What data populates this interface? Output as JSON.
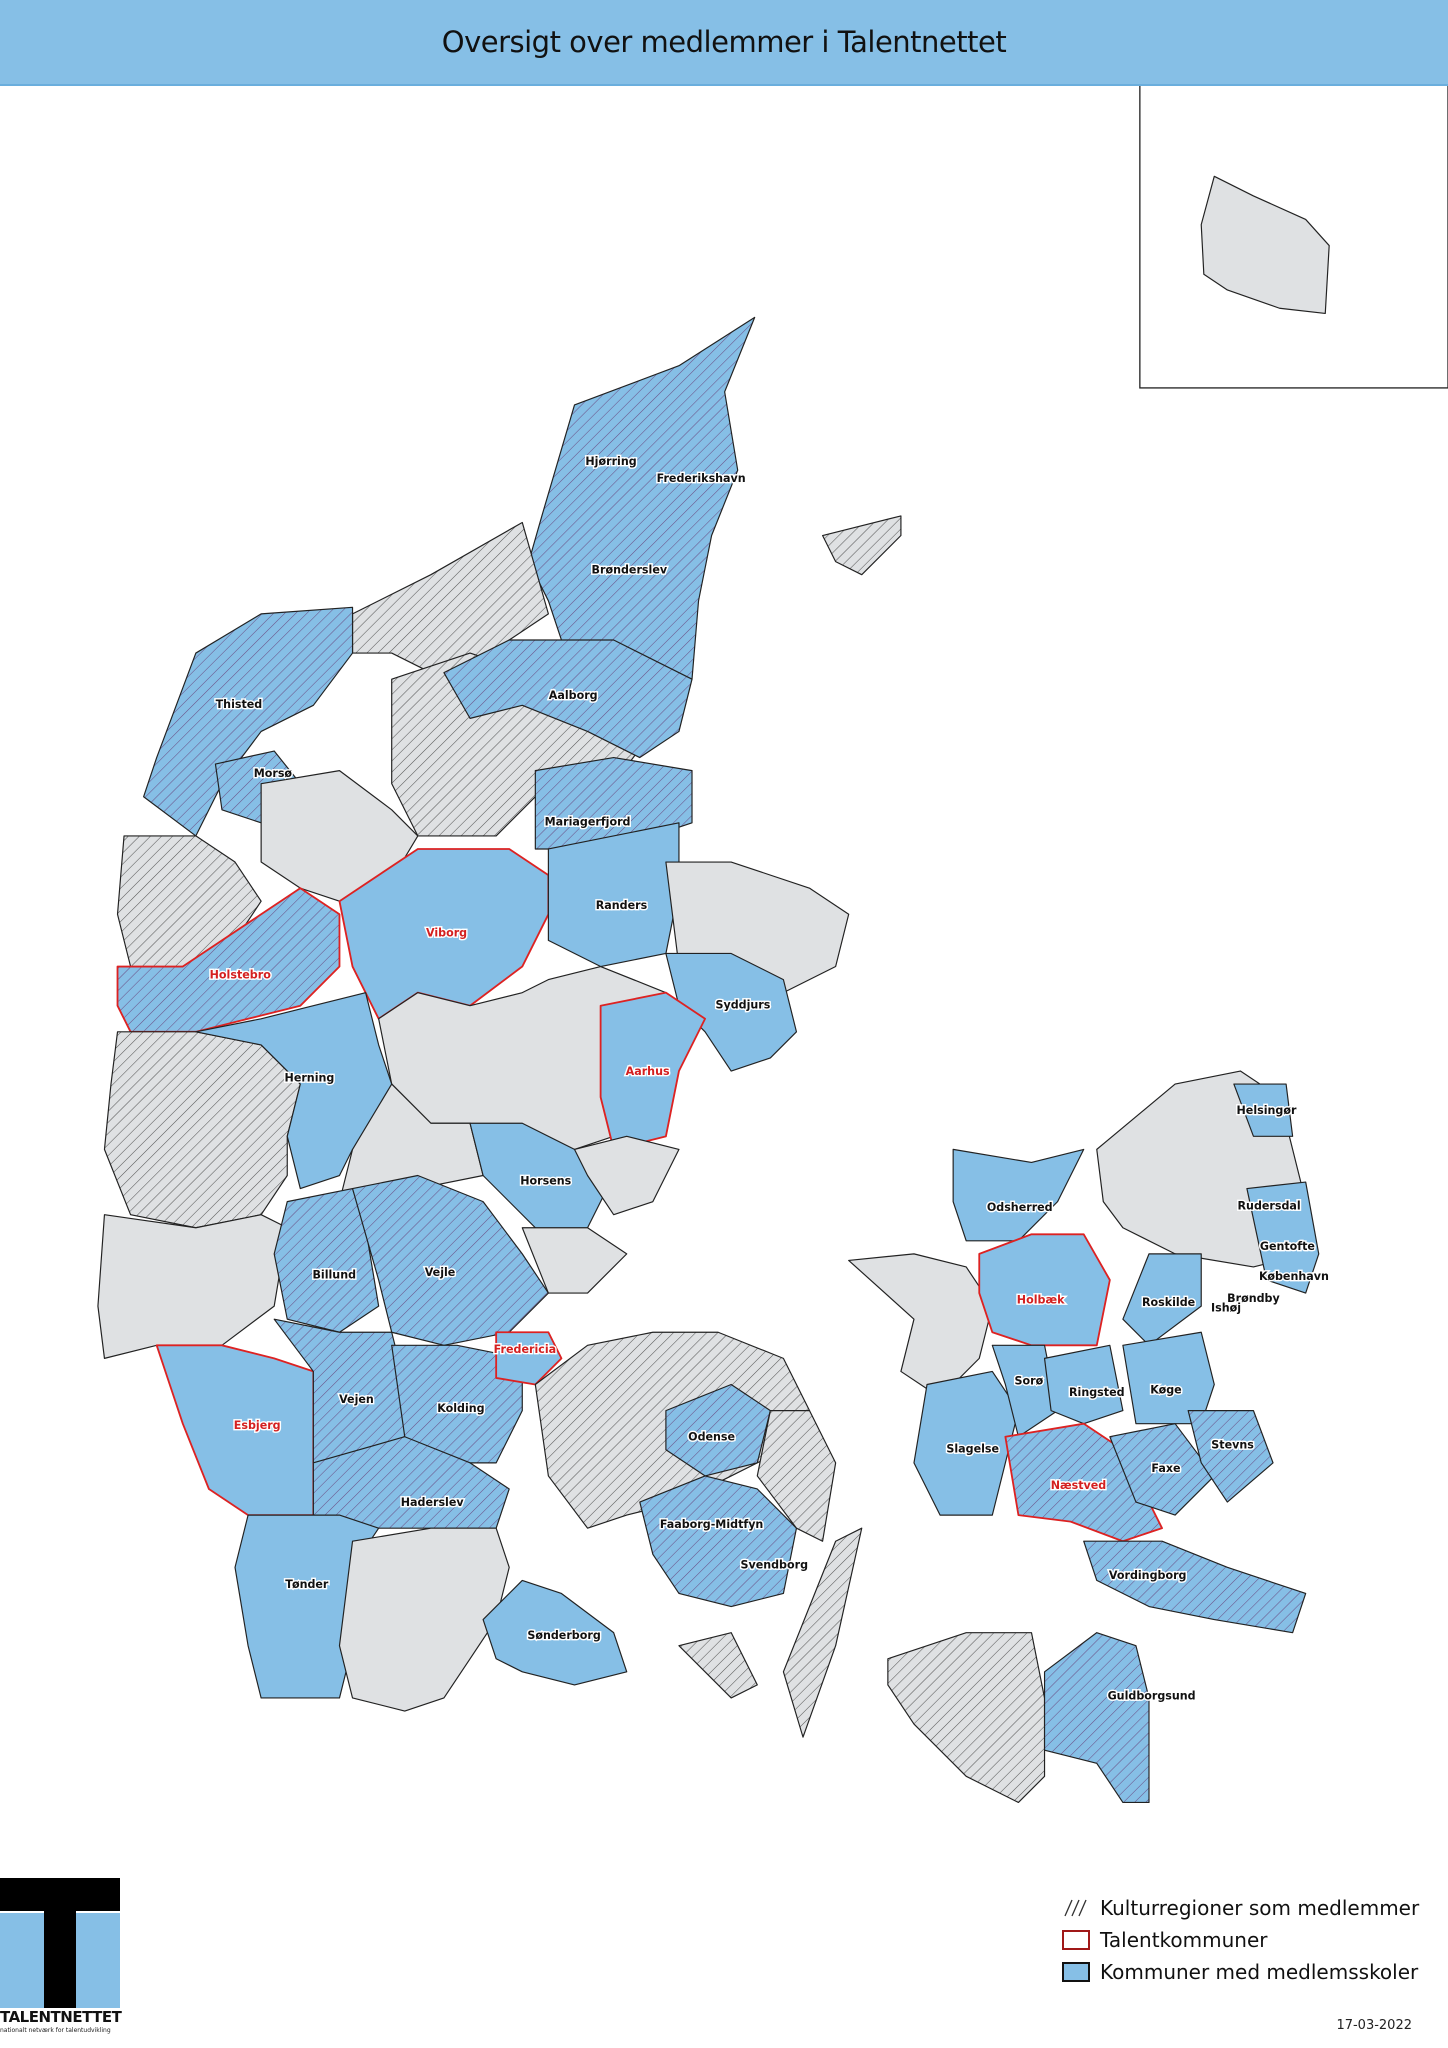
{
  "title": "Oversigt over medlemmer i Talentnettet",
  "colors": {
    "member_fill": "#86bfe6",
    "other_fill": "#dfe1e3",
    "talent_border": "#d22222",
    "title_bar": "#86bfe6"
  },
  "legend": {
    "hatch": "Kulturregioner som medlemmer",
    "talent": "Talentkommuner",
    "member": "Kommuner med medlemsskoler"
  },
  "date": "17-03-2022",
  "logo": {
    "name": "TALENTNETTET",
    "tagline": "nationalt netværk for talentudvikling"
  },
  "municipality_labels": [
    {
      "name": "Hjørring",
      "talent": false
    },
    {
      "name": "Frederikshavn",
      "talent": false
    },
    {
      "name": "Brønderslev",
      "talent": false
    },
    {
      "name": "Thisted",
      "talent": false
    },
    {
      "name": "Aalborg",
      "talent": false
    },
    {
      "name": "Morsø",
      "talent": false
    },
    {
      "name": "Mariagerfjord",
      "talent": false
    },
    {
      "name": "Randers",
      "talent": false
    },
    {
      "name": "Viborg",
      "talent": true
    },
    {
      "name": "Holstebro",
      "talent": true
    },
    {
      "name": "Syddjurs",
      "talent": false
    },
    {
      "name": "Aarhus",
      "talent": true
    },
    {
      "name": "Herning",
      "talent": false
    },
    {
      "name": "Horsens",
      "talent": false
    },
    {
      "name": "Billund",
      "talent": false
    },
    {
      "name": "Vejle",
      "talent": false
    },
    {
      "name": "Fredericia",
      "talent": true
    },
    {
      "name": "Vejen",
      "talent": false
    },
    {
      "name": "Kolding",
      "talent": false
    },
    {
      "name": "Esbjerg",
      "talent": true
    },
    {
      "name": "Haderslev",
      "talent": false
    },
    {
      "name": "Odense",
      "talent": false
    },
    {
      "name": "Faaborg-Midtfyn",
      "talent": false
    },
    {
      "name": "Svendborg",
      "talent": false
    },
    {
      "name": "Tønder",
      "talent": false
    },
    {
      "name": "Sønderborg",
      "talent": false
    },
    {
      "name": "Helsingør",
      "talent": false
    },
    {
      "name": "Rudersdal",
      "talent": false
    },
    {
      "name": "Gentofte",
      "talent": false
    },
    {
      "name": "København",
      "talent": false
    },
    {
      "name": "Brøndby",
      "talent": false
    },
    {
      "name": "Ishøj",
      "talent": false
    },
    {
      "name": "Roskilde",
      "talent": false
    },
    {
      "name": "Holbæk",
      "talent": true
    },
    {
      "name": "Odsherred",
      "talent": false
    },
    {
      "name": "Sorø",
      "talent": false
    },
    {
      "name": "Ringsted",
      "talent": false
    },
    {
      "name": "Køge",
      "talent": false
    },
    {
      "name": "Slagelse",
      "talent": false
    },
    {
      "name": "Stevns",
      "talent": false
    },
    {
      "name": "Næstved",
      "talent": true
    },
    {
      "name": "Faxe",
      "talent": false
    },
    {
      "name": "Vordingborg",
      "talent": false
    },
    {
      "name": "Guldborgsund",
      "talent": false
    }
  ]
}
